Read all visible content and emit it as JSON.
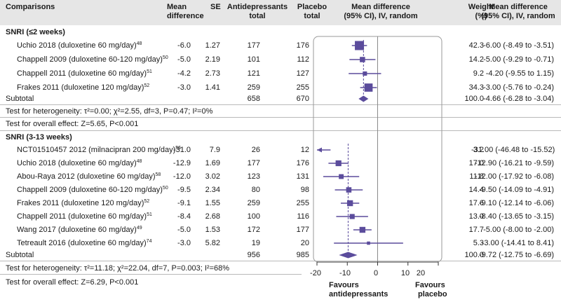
{
  "header": {
    "comparisons": "Comparisons",
    "mean_diff_l1": "Mean",
    "mean_diff_l2": "difference",
    "se": "SE",
    "antidep_l1": "Antidepressants",
    "antidep_l2": "total",
    "placebo_l1": "Placebo",
    "placebo_l2": "total",
    "plot_l1": "Mean difference",
    "plot_l2": "(95% CI), IV, random",
    "weight_l1": "Weight",
    "weight_l2": "(%)",
    "ci_l1": "Mean difference",
    "ci_l2": "(95% CI), IV, random"
  },
  "sections": [
    {
      "title": "SNRI (≤2 weeks)",
      "rows": [
        {
          "label": "Uchio 2018 (duloxetine 60 mg/day)",
          "ref": "48",
          "md": "-6.0",
          "se": "1.27",
          "ad": "177",
          "pl": "176",
          "weight": "42.3",
          "ci": "-6.00 (-8.49 to -3.51)"
        },
        {
          "label": "Chappell 2009 (duloxetine 60-120 mg/day)",
          "ref": "50",
          "md": "-5.0",
          "se": "2.19",
          "ad": "101",
          "pl": "112",
          "weight": "14.2",
          "ci": "-5.00 (-9.29 to -0.71)"
        },
        {
          "label": "Chappell 2011 (duloxetine 60 mg/day)",
          "ref": "51",
          "md": "-4.2",
          "se": "2.73",
          "ad": "121",
          "pl": "127",
          "weight": "9.2",
          "ci": "-4.20 (-9.55 to 1.15)"
        },
        {
          "label": "Frakes 2011 (duloxetine 120 mg/day)",
          "ref": "52",
          "md": "-3.0",
          "se": "1.41",
          "ad": "259",
          "pl": "255",
          "weight": "34.3",
          "ci": "-3.00 (-5.76 to -0.24)"
        }
      ],
      "subtotal": {
        "label": "Subtotal",
        "ad": "658",
        "pl": "670",
        "weight": "100.0",
        "ci": "-4.66 (-6.28 to -3.04)"
      },
      "heterogeneity": "Test for heterogeneity: τ²=0.00; χ²=2.55, df=3, P=0.47; I²=0%",
      "overall": "Test for overall effect: Z=5.65, P<0.001"
    },
    {
      "title": "SNRI (3-13 weeks)",
      "rows": [
        {
          "label": "NCT01510457 2012 (milnacipran 200 mg/day)",
          "ref": "56",
          "md": "-31.0",
          "se": "7.9",
          "ad": "26",
          "pl": "12",
          "weight": "3.2",
          "ci": "-31.00 (-46.48 to -15.52)"
        },
        {
          "label": "Uchio 2018 (duloxetine 60 mg/day)",
          "ref": "48",
          "md": "-12.9",
          "se": "1.69",
          "ad": "177",
          "pl": "176",
          "weight": "17.0",
          "ci": "-12.90 (-16.21 to -9.59)"
        },
        {
          "label": "Abou-Raya 2012 (duloxetine 60 mg/day)",
          "ref": "58",
          "md": "-12.0",
          "se": "3.02",
          "ad": "123",
          "pl": "131",
          "weight": "11.8",
          "ci": "-12.00 (-17.92 to -6.08)"
        },
        {
          "label": "Chappell 2009 (duloxetine 60-120 mg/day)",
          "ref": "50",
          "md": "-9.5",
          "se": "2.34",
          "ad": "80",
          "pl": "98",
          "weight": "14.4",
          "ci": "-9.50 (-14.09 to -4.91)"
        },
        {
          "label": "Frakes 2011 (duloxetine 120 mg/day)",
          "ref": "52",
          "md": "-9.1",
          "se": "1.55",
          "ad": "259",
          "pl": "255",
          "weight": "17.6",
          "ci": "-9.10 (-12.14 to -6.06)"
        },
        {
          "label": "Chappell 2011 (duloxetine 60 mg/day)",
          "ref": "51",
          "md": "-8.4",
          "se": "2.68",
          "ad": "100",
          "pl": "116",
          "weight": "13.0",
          "ci": "-8.40 (-13.65 to -3.15)"
        },
        {
          "label": "Wang 2017 (duloxetine 60 mg/day)",
          "ref": "49",
          "md": "-5.0",
          "se": "1.53",
          "ad": "172",
          "pl": "177",
          "weight": "17.7",
          "ci": "-5.00 (-8.00 to -2.00)"
        },
        {
          "label": "Tetreault 2016 (duloxetine 60 mg/day)",
          "ref": "74",
          "md": "-3.0",
          "se": "5.82",
          "ad": "19",
          "pl": "20",
          "weight": "5.3",
          "ci": "-3.00 (-14.41 to 8.41)"
        }
      ],
      "subtotal": {
        "label": "Subtotal",
        "ad": "956",
        "pl": "985",
        "weight": "100.0",
        "ci": "-9.72 (-12.75 to -6.69)"
      },
      "heterogeneity": "Test for heterogeneity: τ²=11.18; χ²=22.04, df=7, P=0.003; I²=68%",
      "overall": "Test for overall effect: Z=6.29, P<0.001"
    }
  ],
  "axis": {
    "ticks": [
      "-20",
      "-10",
      "0",
      "10",
      "20"
    ],
    "favours_left_l1": "Favours",
    "favours_left_l2": "antidepressants",
    "favours_right_l1": "Favours",
    "favours_right_l2": "placebo"
  },
  "colors": {
    "marker": "#5b4c9c",
    "header_bg": "#e6e6e6",
    "text": "#1a1a1a"
  },
  "chart_data": {
    "type": "forest",
    "title": "Mean difference (95% CI), IV, random",
    "xlabel": "",
    "xlim": [
      -20,
      20
    ],
    "xticks": [
      -20,
      -10,
      0,
      10,
      20
    ],
    "favours_left": "Favours antidepressants",
    "favours_right": "Favours placebo",
    "groups": [
      {
        "name": "SNRI (≤2 weeks)",
        "studies": [
          {
            "study": "Uchio 2018",
            "md": -6.0,
            "lo": -8.49,
            "hi": -3.51,
            "weight": 42.3
          },
          {
            "study": "Chappell 2009",
            "md": -5.0,
            "lo": -9.29,
            "hi": -0.71,
            "weight": 14.2
          },
          {
            "study": "Chappell 2011",
            "md": -4.2,
            "lo": -9.55,
            "hi": 1.15,
            "weight": 9.2
          },
          {
            "study": "Frakes 2011",
            "md": -3.0,
            "lo": -5.76,
            "hi": -0.24,
            "weight": 34.3
          }
        ],
        "pooled": {
          "md": -4.66,
          "lo": -6.28,
          "hi": -3.04
        }
      },
      {
        "name": "SNRI (3-13 weeks)",
        "studies": [
          {
            "study": "NCT01510457 2012",
            "md": -31.0,
            "lo": -46.48,
            "hi": -15.52,
            "weight": 3.2
          },
          {
            "study": "Uchio 2018",
            "md": -12.9,
            "lo": -16.21,
            "hi": -9.59,
            "weight": 17.0
          },
          {
            "study": "Abou-Raya 2012",
            "md": -12.0,
            "lo": -17.92,
            "hi": -6.08,
            "weight": 11.8
          },
          {
            "study": "Chappell 2009",
            "md": -9.5,
            "lo": -14.09,
            "hi": -4.91,
            "weight": 14.4
          },
          {
            "study": "Frakes 2011",
            "md": -9.1,
            "lo": -12.14,
            "hi": -6.06,
            "weight": 17.6
          },
          {
            "study": "Chappell 2011",
            "md": -8.4,
            "lo": -13.65,
            "hi": -3.15,
            "weight": 13.0
          },
          {
            "study": "Wang 2017",
            "md": -5.0,
            "lo": -8.0,
            "hi": -2.0,
            "weight": 17.7
          },
          {
            "study": "Tetreault 2016",
            "md": -3.0,
            "lo": -14.41,
            "hi": 8.41,
            "weight": 5.3
          }
        ],
        "pooled": {
          "md": -9.72,
          "lo": -12.75,
          "hi": -6.69
        }
      }
    ]
  }
}
